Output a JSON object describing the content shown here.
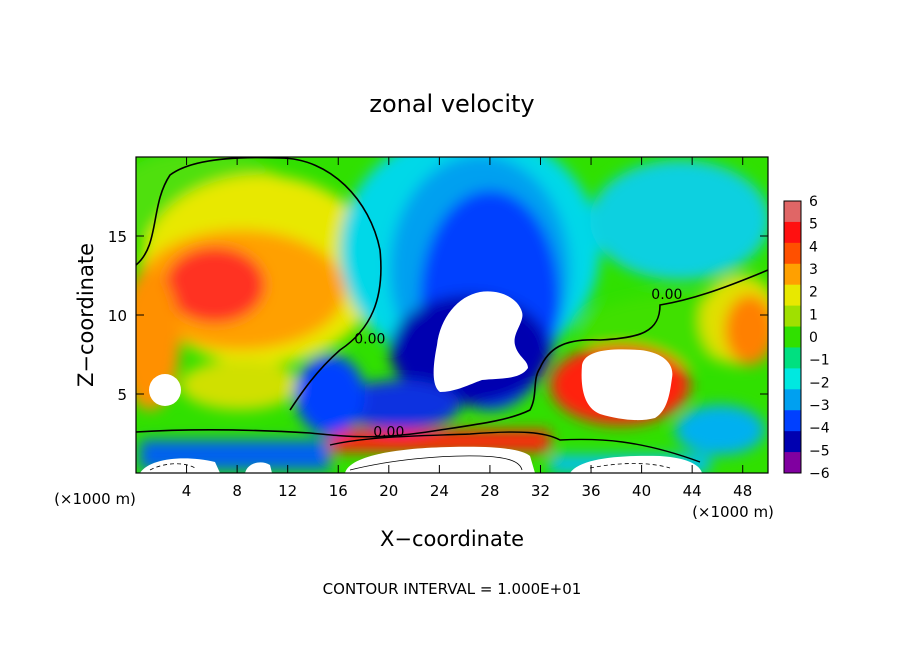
{
  "chart_data": {
    "type": "heatmap",
    "title": "zonal velocity",
    "xlabel": "X−coordinate",
    "ylabel": "Z−coordinate",
    "x_unit_left": "(×1000 m)",
    "x_unit_right": "(×1000 m)",
    "footer": "CONTOUR INTERVAL = 1.000E+01",
    "xlim": [
      0,
      50
    ],
    "ylim": [
      0,
      20
    ],
    "x_ticks": [
      4,
      8,
      12,
      16,
      20,
      24,
      28,
      32,
      36,
      40,
      44,
      48
    ],
    "x_tick_labels": [
      "4",
      "8",
      "12",
      "16",
      "20",
      "24",
      "28",
      "32",
      "36",
      "40",
      "44",
      "48"
    ],
    "y_ticks": [
      5,
      10,
      15
    ],
    "y_tick_labels": [
      "5",
      "10",
      "15"
    ],
    "colorbar": {
      "min": -6,
      "max": 6,
      "levels": [
        6,
        5,
        4,
        3,
        2,
        1,
        0,
        -1,
        -2,
        -3,
        -4,
        -5,
        -6
      ],
      "labels": [
        "6",
        "5",
        "4",
        "3",
        "2",
        "1",
        "0",
        "−1",
        "−2",
        "−3",
        "−4",
        "−5",
        "−6"
      ],
      "colors": [
        "#e06666",
        "#ff1010",
        "#ff5000",
        "#ffa000",
        "#e8e800",
        "#a0e000",
        "#30e000",
        "#00e080",
        "#00e8e0",
        "#00a0f0",
        "#0040ff",
        "#0000b0",
        "#8000a0"
      ]
    },
    "contour_labels": [
      {
        "text": "0.00",
        "x": 18.5,
        "z": 8.2
      },
      {
        "text": "0.00",
        "x": 42.0,
        "z": 11.0
      },
      {
        "text": "0.00",
        "x": 20.0,
        "z": 2.3
      }
    ],
    "regions": [
      {
        "label": "strong westerly (≈3 to 6) upper-left",
        "x": 6,
        "z": 12
      },
      {
        "label": "strong easterly (≤−6) center",
        "x": 27,
        "z": 9
      },
      {
        "label": "strong westerly (≈6) right",
        "x": 38,
        "z": 6
      }
    ]
  }
}
